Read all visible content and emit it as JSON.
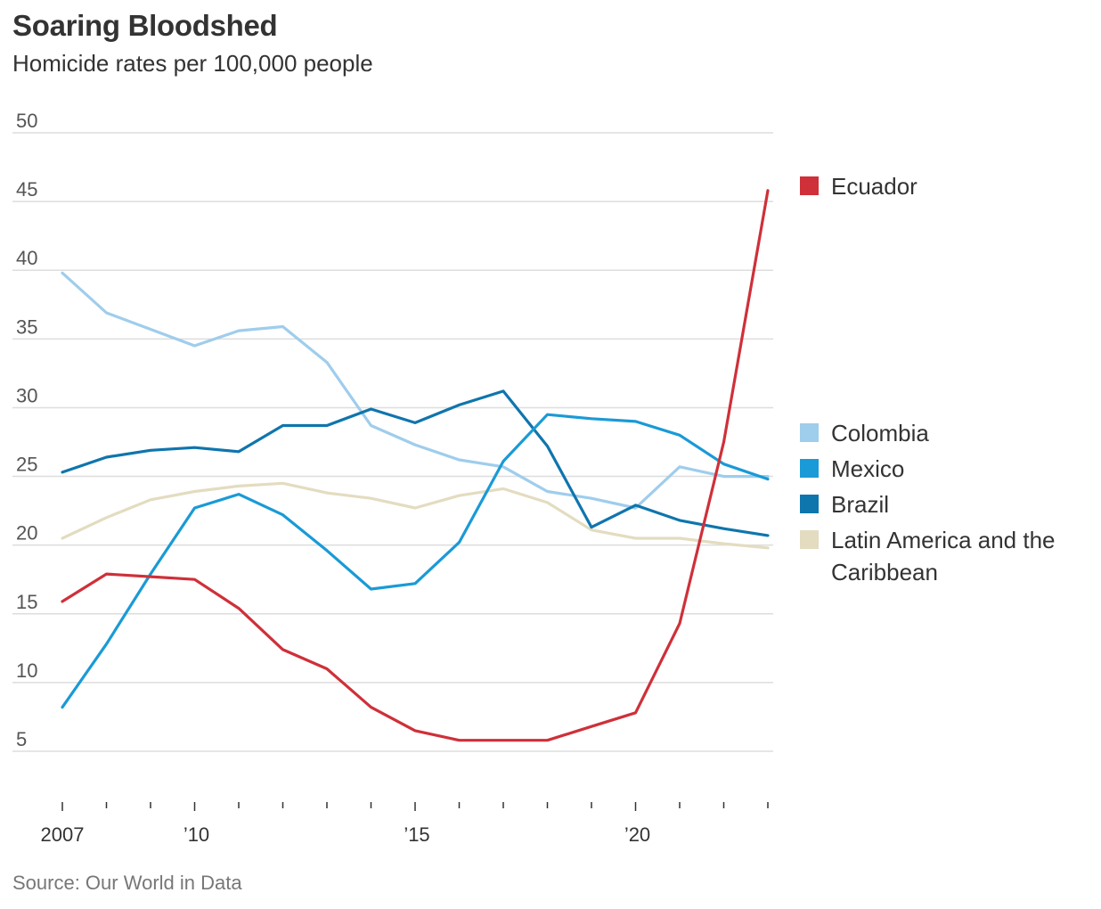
{
  "header": {
    "title": "Soaring Bloodshed",
    "subtitle": "Homicide rates per 100,000 people"
  },
  "footer": {
    "source": "Source: Our World in Data"
  },
  "chart_data": {
    "type": "line",
    "title": "Soaring Bloodshed",
    "subtitle": "Homicide rates per 100,000 people",
    "xlabel": "",
    "ylabel": "",
    "x": [
      2007,
      2008,
      2009,
      2010,
      2011,
      2012,
      2013,
      2014,
      2015,
      2016,
      2017,
      2018,
      2019,
      2020,
      2021,
      2022,
      2023
    ],
    "xlim": [
      2007,
      2023
    ],
    "ylim": [
      5,
      50
    ],
    "y_ticks": [
      {
        "value": 50,
        "label": "50"
      },
      {
        "value": 45,
        "label": "45"
      },
      {
        "value": 40,
        "label": "40"
      },
      {
        "value": 35,
        "label": "35"
      },
      {
        "value": 30,
        "label": "30"
      },
      {
        "value": 25,
        "label": "25"
      },
      {
        "value": 20,
        "label": "20"
      },
      {
        "value": 15,
        "label": "15"
      },
      {
        "value": 10,
        "label": "10"
      },
      {
        "value": 5,
        "label": "5"
      }
    ],
    "x_ticks": [
      {
        "value": 2007,
        "label": "2007"
      },
      {
        "value": 2008,
        "label": ""
      },
      {
        "value": 2009,
        "label": ""
      },
      {
        "value": 2010,
        "label": "’10"
      },
      {
        "value": 2011,
        "label": ""
      },
      {
        "value": 2012,
        "label": ""
      },
      {
        "value": 2013,
        "label": ""
      },
      {
        "value": 2014,
        "label": ""
      },
      {
        "value": 2015,
        "label": "’15"
      },
      {
        "value": 2016,
        "label": ""
      },
      {
        "value": 2017,
        "label": ""
      },
      {
        "value": 2018,
        "label": ""
      },
      {
        "value": 2019,
        "label": ""
      },
      {
        "value": 2020,
        "label": "’20"
      },
      {
        "value": 2021,
        "label": ""
      },
      {
        "value": 2022,
        "label": ""
      },
      {
        "value": 2023,
        "label": ""
      }
    ],
    "grid": true,
    "legend_placement": "right",
    "series": [
      {
        "name": "Colombia",
        "color": "#9fcdec",
        "values": [
          39.8,
          36.9,
          35.7,
          34.5,
          35.6,
          35.9,
          33.3,
          28.7,
          27.3,
          26.2,
          25.7,
          23.9,
          23.4,
          22.7,
          25.7,
          25.0,
          25.0
        ]
      },
      {
        "name": "Latin America and the Caribbean",
        "color": "#e3dcc0",
        "values": [
          20.5,
          22.0,
          23.3,
          23.9,
          24.3,
          24.5,
          23.8,
          23.4,
          22.7,
          23.6,
          24.1,
          23.1,
          21.1,
          20.5,
          20.5,
          20.1,
          19.8
        ]
      },
      {
        "name": "Brazil",
        "color": "#0f75ad",
        "values": [
          25.3,
          26.4,
          26.9,
          27.1,
          26.8,
          28.7,
          28.7,
          29.9,
          28.9,
          30.2,
          31.2,
          27.2,
          21.3,
          22.9,
          21.8,
          21.2,
          20.7
        ]
      },
      {
        "name": "Mexico",
        "color": "#1a9ad6",
        "values": [
          8.2,
          12.8,
          17.9,
          22.7,
          23.7,
          22.2,
          19.6,
          16.8,
          17.2,
          20.2,
          26.1,
          29.5,
          29.2,
          29.0,
          28.0,
          25.9,
          24.8
        ]
      },
      {
        "name": "Ecuador",
        "color": "#cf3039",
        "values": [
          15.9,
          17.9,
          17.7,
          17.5,
          15.4,
          12.4,
          11.0,
          8.2,
          6.5,
          5.8,
          5.8,
          5.8,
          6.8,
          7.8,
          14.3,
          27.5,
          45.8
        ]
      }
    ],
    "legend": [
      {
        "name": "Ecuador",
        "color": "#cf3039",
        "lines": [
          "Ecuador"
        ]
      },
      {
        "name": "Colombia",
        "color": "#9fcdec",
        "lines": [
          "Colombia"
        ]
      },
      {
        "name": "Mexico",
        "color": "#1a9ad6",
        "lines": [
          "Mexico"
        ]
      },
      {
        "name": "Brazil",
        "color": "#0f75ad",
        "lines": [
          "Brazil"
        ]
      },
      {
        "name": "Latin America and the Caribbean",
        "color": "#e3dcc0",
        "lines": [
          "Latin America and the",
          "Caribbean"
        ]
      }
    ]
  }
}
